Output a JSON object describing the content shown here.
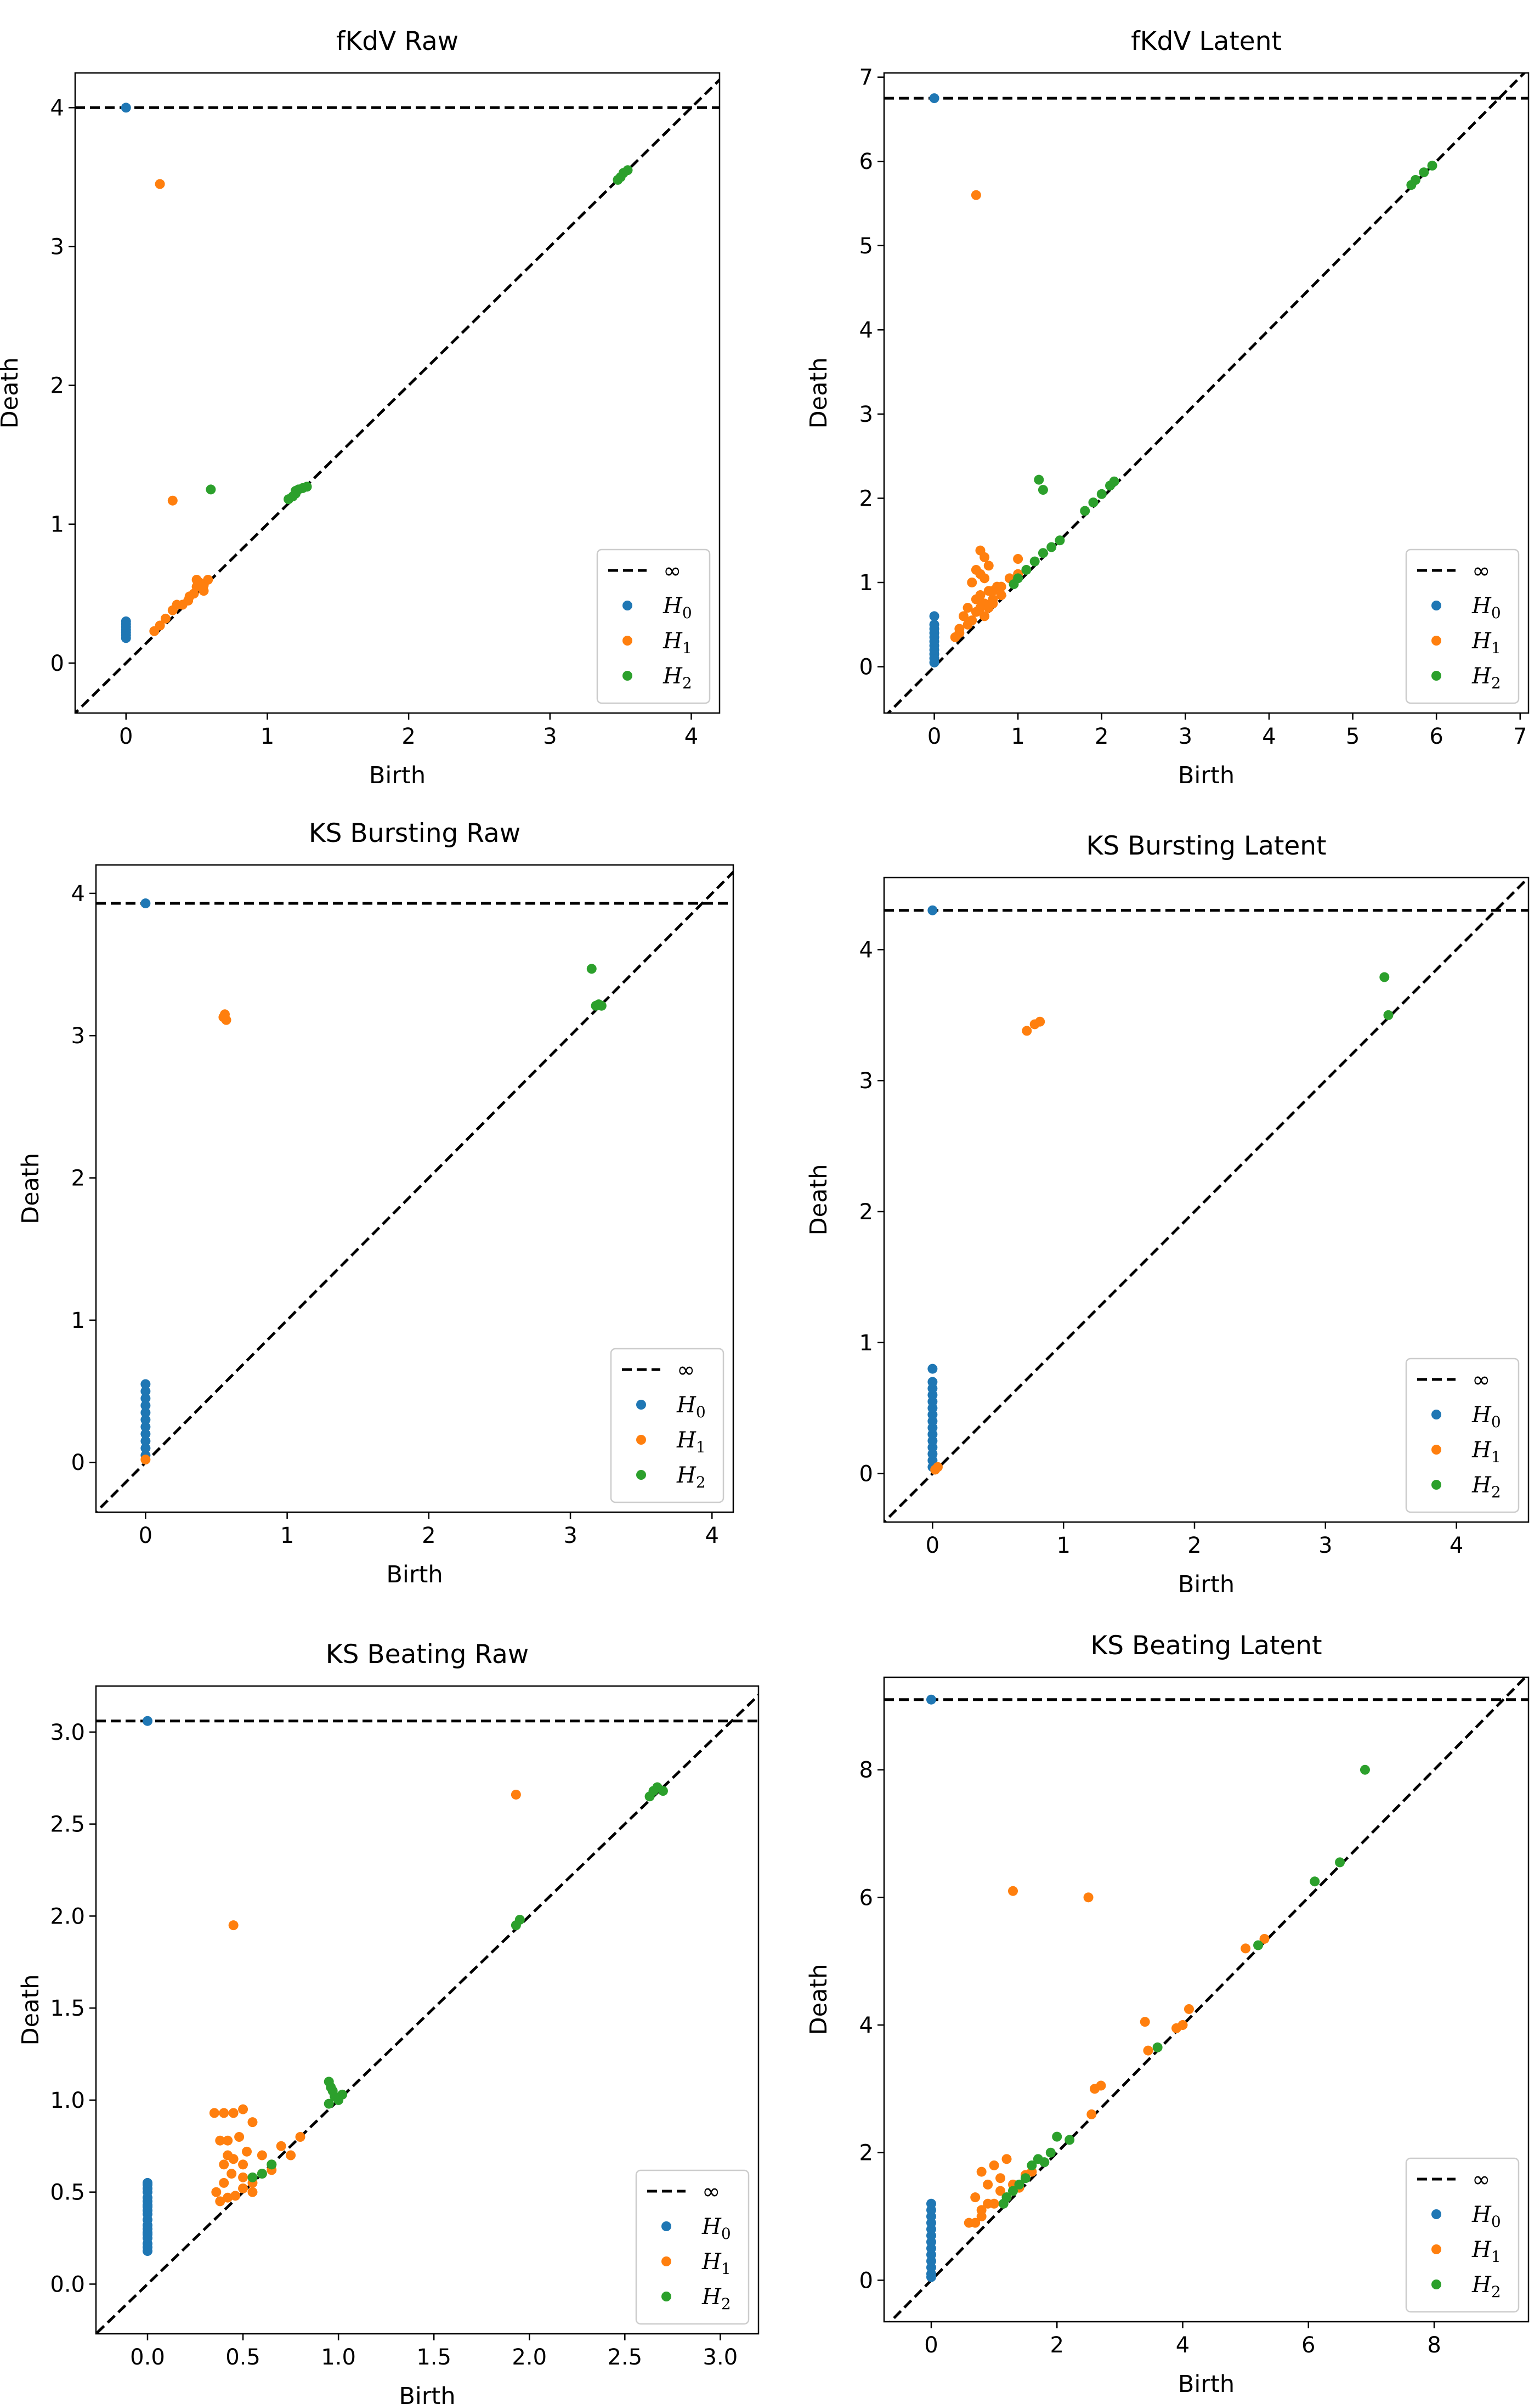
{
  "figure": {
    "description_free": true
  },
  "colors": {
    "H0": "#1f77b4",
    "H1": "#ff7f0e",
    "H2": "#2ca02c",
    "inf_line": "#000000",
    "diag": "#000000"
  },
  "legend_labels": {
    "inf": "∞",
    "H0_base": "H",
    "H0_sub": "0",
    "H1_base": "H",
    "H1_sub": "1",
    "H2_base": "H",
    "H2_sub": "2"
  },
  "chart_data": [
    {
      "type": "scatter",
      "title": "fKdV Raw",
      "xlabel": "Birth",
      "ylabel": "Death",
      "xlim": [
        -0.36,
        4.2
      ],
      "ylim": [
        -0.36,
        4.25
      ],
      "xticks": [
        0,
        1,
        2,
        3,
        4
      ],
      "xtick_labels": [
        "0",
        "1",
        "2",
        "3",
        "4"
      ],
      "yticks": [
        0,
        1,
        2,
        3,
        4
      ],
      "ytick_labels": [
        "0",
        "1",
        "2",
        "3",
        "4"
      ],
      "infinity": 4.0,
      "legend_position": "lower-right",
      "series": [
        {
          "name": "H0",
          "x": [
            0,
            0,
            0,
            0,
            0,
            0,
            0,
            0
          ],
          "y": [
            4.0,
            0.18,
            0.2,
            0.22,
            0.24,
            0.26,
            0.28,
            0.3
          ]
        },
        {
          "name": "H1",
          "x": [
            0.24,
            0.33,
            0.2,
            0.24,
            0.28,
            0.33,
            0.36,
            0.4,
            0.44,
            0.48,
            0.5,
            0.52,
            0.55,
            0.58,
            0.5,
            0.55,
            0.45
          ],
          "y": [
            3.45,
            1.17,
            0.23,
            0.27,
            0.32,
            0.38,
            0.42,
            0.42,
            0.45,
            0.5,
            0.55,
            0.58,
            0.56,
            0.6,
            0.6,
            0.52,
            0.48
          ]
        },
        {
          "name": "H2",
          "x": [
            3.48,
            3.5,
            3.52,
            3.55,
            0.6,
            1.18,
            1.2,
            1.22,
            1.25,
            1.28,
            1.15,
            1.2
          ],
          "y": [
            3.48,
            3.5,
            3.53,
            3.55,
            1.25,
            1.2,
            1.22,
            1.25,
            1.26,
            1.27,
            1.18,
            1.24
          ]
        }
      ]
    },
    {
      "type": "scatter",
      "title": "fKdV Latent",
      "xlabel": "Birth",
      "ylabel": "Death",
      "xlim": [
        -0.6,
        7.1
      ],
      "ylim": [
        -0.55,
        7.05
      ],
      "xticks": [
        0,
        1,
        2,
        3,
        4,
        5,
        6,
        7
      ],
      "xtick_labels": [
        "0",
        "1",
        "2",
        "3",
        "4",
        "5",
        "6",
        "7"
      ],
      "yticks": [
        0,
        1,
        2,
        3,
        4,
        5,
        6,
        7
      ],
      "ytick_labels": [
        "0",
        "1",
        "2",
        "3",
        "4",
        "5",
        "6",
        "7"
      ],
      "infinity": 6.75,
      "legend_position": "lower-right",
      "series": [
        {
          "name": "H0",
          "x": [
            0,
            0,
            0,
            0,
            0,
            0,
            0,
            0,
            0,
            0,
            0,
            0
          ],
          "y": [
            6.75,
            0.05,
            0.1,
            0.15,
            0.2,
            0.25,
            0.3,
            0.35,
            0.4,
            0.45,
            0.5,
            0.6
          ]
        },
        {
          "name": "H1",
          "x": [
            0.5,
            0.55,
            0.6,
            0.65,
            0.5,
            0.45,
            0.55,
            0.6,
            0.7,
            0.8,
            0.4,
            0.35,
            0.3,
            0.25,
            0.5,
            0.55,
            0.6,
            0.65,
            0.7,
            0.75,
            0.8,
            0.9,
            1.0,
            0.45,
            0.5,
            0.55,
            0.6,
            0.65,
            0.7,
            1.0,
            0.3,
            0.4
          ],
          "y": [
            5.6,
            1.38,
            1.3,
            1.2,
            1.15,
            1.0,
            1.1,
            1.05,
            0.9,
            0.95,
            0.7,
            0.6,
            0.45,
            0.35,
            0.8,
            0.85,
            0.75,
            0.9,
            0.8,
            0.95,
            0.85,
            1.05,
            1.28,
            0.55,
            0.65,
            0.7,
            0.6,
            0.7,
            0.75,
            1.1,
            0.4,
            0.5
          ]
        },
        {
          "name": "H2",
          "x": [
            5.7,
            5.75,
            5.85,
            5.95,
            1.25,
            1.3,
            2.0,
            2.1,
            2.15,
            1.8,
            1.9,
            1.5,
            1.4,
            1.3,
            1.2,
            1.1,
            1.0,
            0.95
          ],
          "y": [
            5.72,
            5.78,
            5.87,
            5.95,
            2.22,
            2.1,
            2.05,
            2.15,
            2.2,
            1.85,
            1.95,
            1.5,
            1.42,
            1.35,
            1.25,
            1.15,
            1.05,
            0.98
          ]
        }
      ]
    },
    {
      "type": "scatter",
      "title": "KS Bursting Raw",
      "xlabel": "Birth",
      "ylabel": "Death",
      "xlim": [
        -0.35,
        4.15
      ],
      "ylim": [
        -0.35,
        4.2
      ],
      "xticks": [
        0,
        1,
        2,
        3,
        4
      ],
      "xtick_labels": [
        "0",
        "1",
        "2",
        "3",
        "4"
      ],
      "yticks": [
        0,
        1,
        2,
        3,
        4
      ],
      "ytick_labels": [
        "0",
        "1",
        "2",
        "3",
        "4"
      ],
      "infinity": 3.93,
      "legend_position": "lower-right",
      "series": [
        {
          "name": "H0",
          "x": [
            0,
            0,
            0,
            0,
            0,
            0,
            0,
            0,
            0,
            0,
            0,
            0
          ],
          "y": [
            3.93,
            0.05,
            0.1,
            0.15,
            0.2,
            0.25,
            0.3,
            0.35,
            0.4,
            0.45,
            0.5,
            0.55
          ]
        },
        {
          "name": "H1",
          "x": [
            0.55,
            0.56,
            0.57,
            0.0
          ],
          "y": [
            3.13,
            3.15,
            3.11,
            0.02
          ]
        },
        {
          "name": "H2",
          "x": [
            3.15,
            3.18,
            3.22,
            3.2
          ],
          "y": [
            3.47,
            3.21,
            3.21,
            3.22
          ]
        }
      ]
    },
    {
      "type": "scatter",
      "title": "KS Bursting Latent",
      "xlabel": "Birth",
      "ylabel": "Death",
      "xlim": [
        -0.37,
        4.55
      ],
      "ylim": [
        -0.37,
        4.55
      ],
      "xticks": [
        0,
        1,
        2,
        3,
        4
      ],
      "xtick_labels": [
        "0",
        "1",
        "2",
        "3",
        "4"
      ],
      "yticks": [
        0,
        1,
        2,
        3,
        4
      ],
      "ytick_labels": [
        "0",
        "1",
        "2",
        "3",
        "4"
      ],
      "infinity": 4.3,
      "legend_position": "lower-right",
      "series": [
        {
          "name": "H0",
          "x": [
            0,
            0,
            0,
            0,
            0,
            0,
            0,
            0,
            0,
            0,
            0,
            0,
            0,
            0,
            0,
            0
          ],
          "y": [
            4.3,
            0.05,
            0.1,
            0.15,
            0.2,
            0.25,
            0.3,
            0.35,
            0.4,
            0.45,
            0.5,
            0.55,
            0.6,
            0.65,
            0.7,
            0.8
          ]
        },
        {
          "name": "H1",
          "x": [
            0.72,
            0.78,
            0.82,
            0.02,
            0.04
          ],
          "y": [
            3.38,
            3.43,
            3.45,
            0.03,
            0.05
          ]
        },
        {
          "name": "H2",
          "x": [
            3.45,
            3.48
          ],
          "y": [
            3.79,
            3.5
          ]
        }
      ]
    },
    {
      "type": "scatter",
      "title": "KS Beating Raw",
      "xlabel": "Birth",
      "ylabel": "Death",
      "xlim": [
        -0.27,
        3.2
      ],
      "ylim": [
        -0.27,
        3.25
      ],
      "xticks": [
        0,
        0.5,
        1.0,
        1.5,
        2.0,
        2.5,
        3.0
      ],
      "xtick_labels": [
        "0.0",
        "0.5",
        "1.0",
        "1.5",
        "2.0",
        "2.5",
        "3.0"
      ],
      "yticks": [
        0,
        0.5,
        1.0,
        1.5,
        2.0,
        2.5,
        3.0
      ],
      "ytick_labels": [
        "0.0",
        "0.5",
        "1.0",
        "1.5",
        "2.0",
        "2.5",
        "3.0"
      ],
      "infinity": 3.06,
      "legend_position": "lower-right",
      "series": [
        {
          "name": "H0",
          "x": [
            0,
            0,
            0,
            0,
            0,
            0,
            0,
            0,
            0,
            0,
            0,
            0,
            0,
            0,
            0,
            0,
            0,
            0,
            0,
            0
          ],
          "y": [
            3.06,
            0.18,
            0.2,
            0.22,
            0.25,
            0.28,
            0.3,
            0.32,
            0.35,
            0.38,
            0.4,
            0.42,
            0.45,
            0.47,
            0.5,
            0.52,
            0.54,
            0.55,
            0.27,
            0.43
          ]
        },
        {
          "name": "H1",
          "x": [
            1.93,
            0.45,
            0.35,
            0.4,
            0.45,
            0.5,
            0.55,
            0.38,
            0.42,
            0.48,
            0.52,
            0.6,
            0.65,
            0.7,
            0.36,
            0.4,
            0.44,
            0.5,
            0.55,
            0.6,
            0.38,
            0.42,
            0.46,
            0.5,
            0.55,
            0.65,
            0.75,
            0.8,
            0.5,
            0.45,
            0.4,
            0.42
          ],
          "y": [
            2.66,
            1.95,
            0.93,
            0.93,
            0.93,
            0.95,
            0.88,
            0.78,
            0.78,
            0.8,
            0.72,
            0.7,
            0.65,
            0.75,
            0.5,
            0.55,
            0.6,
            0.58,
            0.55,
            0.6,
            0.45,
            0.47,
            0.48,
            0.52,
            0.5,
            0.62,
            0.7,
            0.8,
            0.65,
            0.68,
            0.65,
            0.7
          ]
        },
        {
          "name": "H2",
          "x": [
            2.63,
            2.65,
            2.67,
            2.7,
            1.93,
            1.95,
            0.95,
            0.96,
            0.97,
            0.98,
            1.0,
            1.02,
            0.95,
            0.55,
            0.6,
            0.65
          ],
          "y": [
            2.65,
            2.68,
            2.7,
            2.68,
            1.95,
            1.98,
            1.1,
            1.07,
            1.05,
            1.02,
            1.0,
            1.03,
            0.98,
            0.58,
            0.6,
            0.65
          ]
        }
      ]
    },
    {
      "type": "scatter",
      "title": "KS Beating Latent",
      "xlabel": "Birth",
      "ylabel": "Death",
      "xlim": [
        -0.75,
        9.5
      ],
      "ylim": [
        -0.65,
        9.45
      ],
      "xticks": [
        0,
        2,
        4,
        6,
        8
      ],
      "xtick_labels": [
        "0",
        "2",
        "4",
        "6",
        "8"
      ],
      "yticks": [
        0,
        2,
        4,
        6,
        8
      ],
      "ytick_labels": [
        "0",
        "2",
        "4",
        "6",
        "8"
      ],
      "infinity": 9.1,
      "legend_position": "lower-right",
      "series": [
        {
          "name": "H0",
          "x": [
            0,
            0,
            0,
            0,
            0,
            0,
            0,
            0,
            0,
            0,
            0,
            0,
            0,
            0
          ],
          "y": [
            9.1,
            0.05,
            0.1,
            0.2,
            0.3,
            0.4,
            0.5,
            0.6,
            0.7,
            0.8,
            0.9,
            1.0,
            1.1,
            1.2
          ]
        },
        {
          "name": "H1",
          "x": [
            1.3,
            2.5,
            3.4,
            3.45,
            3.9,
            4.0,
            4.1,
            5.0,
            5.3,
            2.6,
            2.7,
            2.55,
            0.8,
            1.0,
            1.2,
            0.9,
            1.1,
            0.7,
            0.6,
            0.8,
            1.0,
            1.3,
            1.5,
            1.1,
            0.9,
            0.8,
            0.7,
            1.2,
            1.4,
            1.6
          ],
          "y": [
            6.1,
            6.0,
            4.05,
            3.6,
            3.95,
            4.0,
            4.25,
            5.2,
            5.35,
            3.0,
            3.05,
            2.6,
            1.7,
            1.8,
            1.9,
            1.5,
            1.6,
            1.3,
            0.9,
            1.0,
            1.2,
            1.5,
            1.65,
            1.4,
            1.2,
            1.1,
            0.9,
            1.3,
            1.45,
            1.7
          ]
        },
        {
          "name": "H2",
          "x": [
            6.9,
            6.5,
            6.1,
            5.2,
            3.6,
            1.9,
            2.0,
            2.2,
            1.7,
            1.6,
            1.5,
            1.4,
            1.3,
            1.2,
            1.15,
            1.8
          ],
          "y": [
            8.0,
            6.55,
            6.25,
            5.25,
            3.65,
            2.0,
            2.25,
            2.2,
            1.9,
            1.8,
            1.6,
            1.5,
            1.4,
            1.3,
            1.2,
            1.85
          ]
        }
      ]
    }
  ]
}
